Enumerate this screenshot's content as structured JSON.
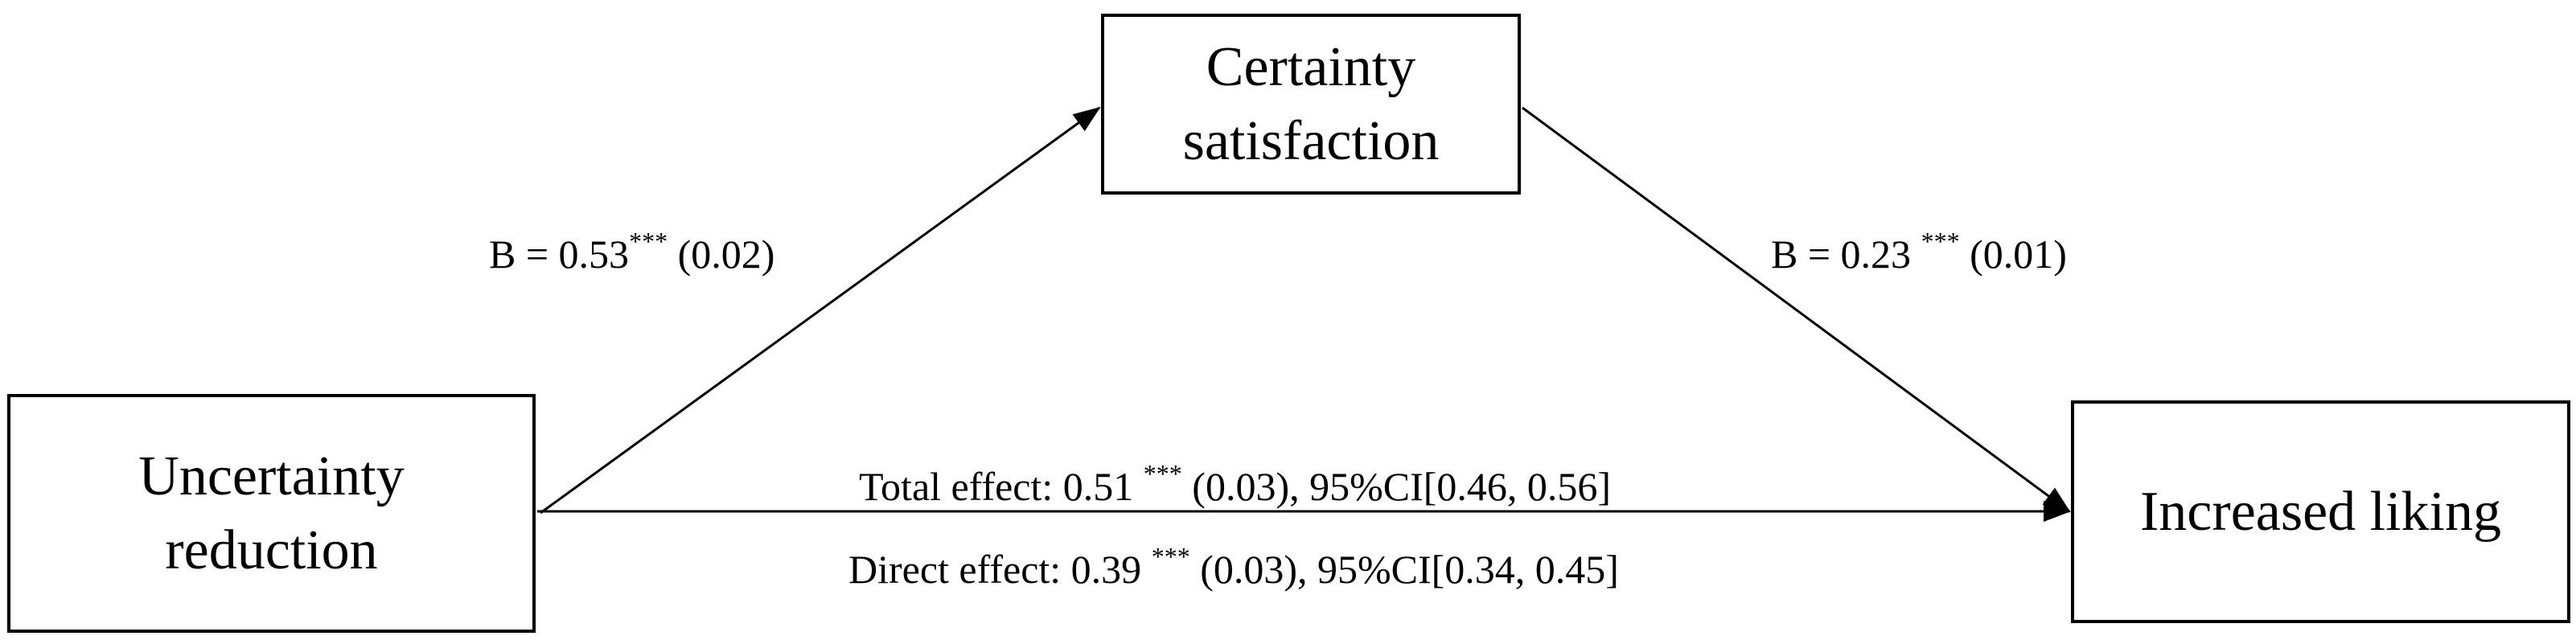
{
  "nodes": {
    "mediator": {
      "line1": "Certainty",
      "line2": "satisfaction"
    },
    "predictor": {
      "line1": "Uncertainty",
      "line2": "reduction"
    },
    "outcome": {
      "line1": "Increased liking"
    }
  },
  "paths": {
    "a": {
      "text_before": "B = 0.53",
      "stars": "***",
      "text_after": " (0.02)"
    },
    "b": {
      "text_before": "B = 0.23 ",
      "stars": "***",
      "text_after": " (0.01)"
    },
    "total": {
      "text_before": "Total effect: 0.51 ",
      "stars": "***",
      "text_after": " (0.03), 95%CI[0.46, 0.56]"
    },
    "direct": {
      "text_before": "Direct effect: 0.39 ",
      "stars": "***",
      "text_after": " (0.03), 95%CI[0.34, 0.45]"
    }
  }
}
